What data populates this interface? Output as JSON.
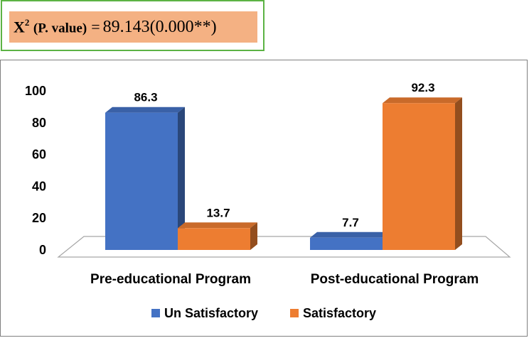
{
  "stat": {
    "label_main": "X",
    "label_sup": "2",
    "label_paren": "(P. value)",
    "equals": "=",
    "value": "89.143(0.000**)"
  },
  "colors": {
    "unsatisfactory": "#4472c4",
    "satisfactory": "#ed7d31",
    "stat_box_border": "#5cb344",
    "stat_box_fill": "#f4b183"
  },
  "chart_data": {
    "type": "bar",
    "categories": [
      "Pre-educational Program",
      "Post-educational Program"
    ],
    "series": [
      {
        "name": "Un Satisfactory",
        "values": [
          86.3,
          7.7
        ]
      },
      {
        "name": "Satisfactory",
        "values": [
          13.7,
          92.3
        ]
      }
    ],
    "yticks": [
      "0",
      "20",
      "40",
      "60",
      "80",
      "100"
    ],
    "ylim": [
      0,
      100
    ],
    "grid": false,
    "legend": "bottom",
    "style": "3d-columns"
  }
}
